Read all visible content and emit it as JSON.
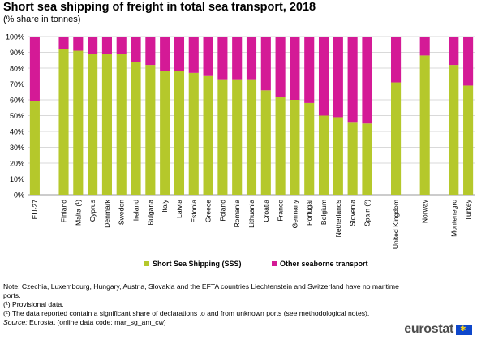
{
  "title": "Short sea shipping of freight in total sea transport, 2018",
  "subtitle": "(% share in tonnes)",
  "colors": {
    "sss": "#b5c82b",
    "other": "#d41a96",
    "grid": "#d9d9d9",
    "axis": "#999999"
  },
  "chart_data": {
    "type": "bar",
    "stacked": true,
    "ylim": [
      0,
      100
    ],
    "yticks": [
      "0%",
      "10%",
      "20%",
      "30%",
      "40%",
      "50%",
      "60%",
      "70%",
      "80%",
      "90%",
      "100%"
    ],
    "legend_position": "bottom",
    "categories": [
      "EU-27",
      "Finland",
      "Malta (¹)",
      "Cyprus",
      "Denmark",
      "Sweden",
      "Ireland",
      "Bulgaria",
      "Italy",
      "Latvia",
      "Estonia",
      "Greece",
      "Poland",
      "Romania",
      "Lithuania",
      "Croatia",
      "France",
      "Germany",
      "Portugal",
      "Belgium",
      "Netherlands",
      "Slovenia",
      "Spain (²)",
      "United Kingdom",
      "Norway",
      "Montenegro",
      "Turkey"
    ],
    "groups": [
      0,
      1,
      1,
      1,
      1,
      1,
      1,
      1,
      1,
      1,
      1,
      1,
      1,
      1,
      1,
      1,
      1,
      1,
      1,
      1,
      1,
      1,
      1,
      2,
      3,
      4,
      4
    ],
    "series": [
      {
        "name": "Short Sea Shipping (SSS)",
        "values": [
          59,
          92,
          91,
          89,
          89,
          89,
          84,
          82,
          78,
          78,
          77,
          75,
          73,
          73,
          73,
          66,
          62,
          60,
          58,
          50,
          49,
          46,
          45,
          71,
          88,
          82,
          69
        ]
      },
      {
        "name": "Other seaborne transport",
        "values": [
          41,
          8,
          9,
          11,
          11,
          11,
          16,
          18,
          22,
          22,
          23,
          25,
          27,
          27,
          27,
          34,
          38,
          40,
          42,
          50,
          51,
          54,
          55,
          29,
          12,
          18,
          31
        ]
      }
    ]
  },
  "notes": [
    "Note: Czechia, Luxembourg, Hungary, Austria, Slovakia and the EFTA countries Liechtenstein and Switzerland have no maritime ports.",
    "(¹) Provisional data.",
    "(²) The data reported contain a significant share of declarations to and from unknown ports (see methodological notes)."
  ],
  "source_label": "Source:",
  "source_text": " Eurostat (online data code: mar_sg_am_cw)",
  "logo_text": "eurostat"
}
